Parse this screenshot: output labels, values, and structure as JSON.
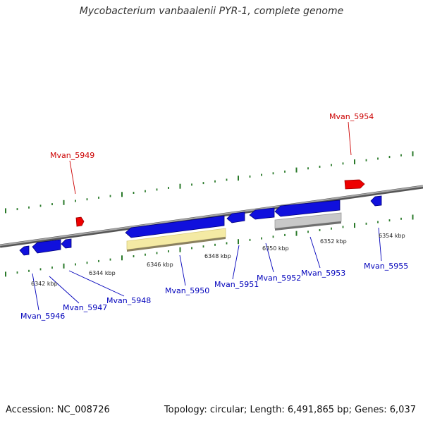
{
  "header": {
    "title": "Mycobacterium vanbaalenii PYR-1, complete genome"
  },
  "footer": {
    "accession": "Accession: NC_008726",
    "topology": "Topology: circular; Length: 6,491,865 bp; Genes: 6,037"
  },
  "colors": {
    "forward_gene": "#ee0000",
    "reverse_gene": "#1010dd",
    "label_forward": "#cc0000",
    "label_reverse": "#0000bb",
    "backbone": "#777777",
    "tick": "#2a7a2a",
    "rna_feature": "#f4eaa4",
    "grey_feature": "#bdbdbd"
  },
  "scale_labels": [
    "6342 kbp",
    "6344 kbp",
    "6346 kbp",
    "6348 kbp",
    "6350 kbp",
    "6352 kbp",
    "6354 kbp"
  ],
  "genes": [
    {
      "id": "Mvan_5946",
      "strand": "reverse"
    },
    {
      "id": "Mvan_5947",
      "strand": "reverse"
    },
    {
      "id": "Mvan_5948",
      "strand": "reverse"
    },
    {
      "id": "Mvan_5949",
      "strand": "forward"
    },
    {
      "id": "Mvan_5950",
      "strand": "reverse"
    },
    {
      "id": "Mvan_5951",
      "strand": "reverse"
    },
    {
      "id": "Mvan_5952",
      "strand": "reverse"
    },
    {
      "id": "Mvan_5953",
      "strand": "reverse"
    },
    {
      "id": "Mvan_5954",
      "strand": "forward"
    },
    {
      "id": "Mvan_5955",
      "strand": "reverse"
    }
  ]
}
